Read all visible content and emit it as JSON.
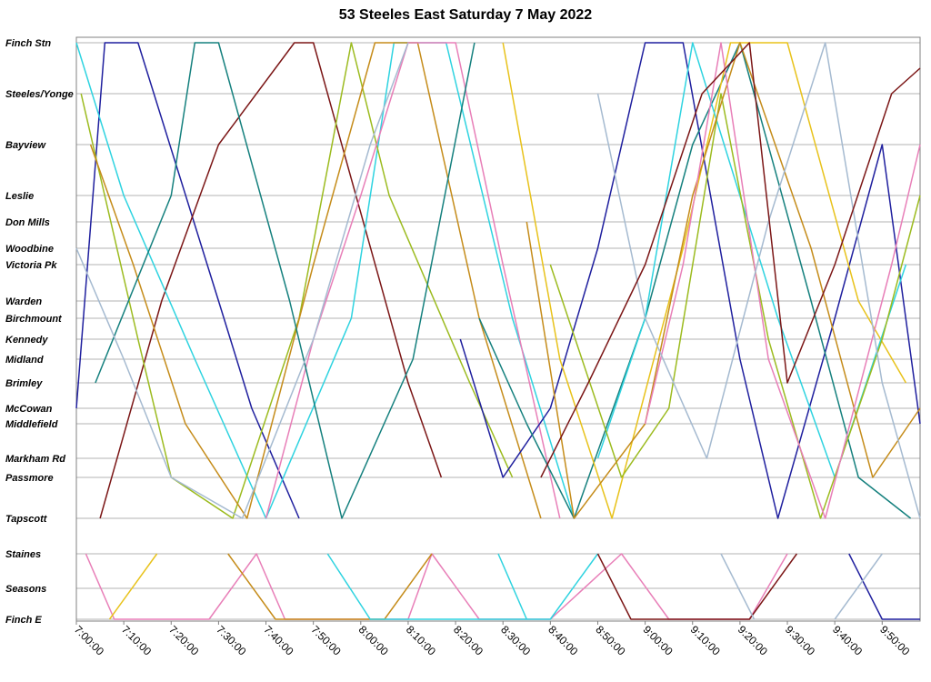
{
  "chart_data": {
    "type": "line",
    "title": "53 Steeles East Saturday 7 May 2022",
    "x_axis": {
      "kind": "time",
      "ticks": [
        "7:00:00",
        "7:10:00",
        "7:20:00",
        "7:30:00",
        "7:40:00",
        "7:50:00",
        "8:00:00",
        "8:10:00",
        "8:20:00",
        "8:30:00",
        "8:40:00",
        "8:50:00",
        "9:00:00",
        "9:10:00",
        "9:20:00",
        "9:30:00",
        "9:40:00",
        "9:50:00"
      ],
      "range_minutes": [
        420,
        598
      ]
    },
    "y_axis": {
      "kind": "stops",
      "grid": true
    },
    "main_branch_stops": [
      "Finch Stn",
      "Steeles/Yonge",
      "Bayview",
      "Leslie",
      "Don Mills",
      "Woodbine",
      "Victoria Pk",
      "Warden",
      "Birchmount",
      "Kennedy",
      "Midland",
      "Brimley",
      "McCowan",
      "Middlefield",
      "Markham Rd",
      "Passmore"
    ],
    "short_branch_stops": [
      "Tapscott",
      "Staines",
      "Seasons",
      "Finch E"
    ],
    "series": [
      {
        "color": "#1f1f9e",
        "points": [
          [
            420,
            12.0
          ],
          [
            426,
            0.0
          ],
          [
            433,
            0.0
          ],
          [
            450,
            7.0
          ],
          [
            457,
            12.0
          ],
          [
            467,
            16.0
          ]
        ]
      },
      {
        "color": "#7b1616",
        "points": [
          [
            425,
            16.0
          ],
          [
            438,
            7.0
          ],
          [
            450,
            2.0
          ],
          [
            466,
            0.0
          ],
          [
            470,
            0.0
          ],
          [
            490,
            11.0
          ],
          [
            497,
            15.0
          ]
        ]
      },
      {
        "color": "#2ed3e0",
        "points": [
          [
            420,
            0.0
          ],
          [
            430,
            3.0
          ],
          [
            445,
            10.0
          ],
          [
            460,
            16.0
          ],
          [
            478,
            8.0
          ],
          [
            487,
            0.0
          ],
          [
            498,
            0.0
          ],
          [
            512,
            8.0
          ],
          [
            525,
            16.0
          ]
        ]
      },
      {
        "color": "#9cbb1f",
        "points": [
          [
            421,
            1.0
          ],
          [
            433,
            9.0
          ],
          [
            440,
            15.0
          ],
          [
            453,
            16.0
          ],
          [
            467,
            8.0
          ],
          [
            478,
            0.0
          ],
          [
            486,
            3.0
          ],
          [
            503,
            11.0
          ],
          [
            512,
            15.0
          ]
        ]
      },
      {
        "color": "#c58c1a",
        "points": [
          [
            423,
            2.0
          ],
          [
            432,
            6.0
          ],
          [
            443,
            13.0
          ],
          [
            456,
            16.0
          ],
          [
            470,
            6.0
          ],
          [
            483,
            0.0
          ],
          [
            492,
            0.0
          ],
          [
            505,
            8.0
          ],
          [
            518,
            16.0
          ]
        ]
      },
      {
        "color": "#e87fb8",
        "points": [
          [
            460,
            16.0
          ],
          [
            470,
            9.0
          ],
          [
            480,
            3.0
          ],
          [
            490,
            0.0
          ],
          [
            500,
            0.0
          ],
          [
            510,
            6.0
          ],
          [
            522,
            16.0
          ]
        ]
      },
      {
        "color": "#15807e",
        "points": [
          [
            424,
            11.0
          ],
          [
            440,
            3.0
          ],
          [
            445,
            0.0
          ],
          [
            450,
            0.0
          ],
          [
            465,
            7.0
          ],
          [
            476,
            16.0
          ],
          [
            491,
            10.0
          ],
          [
            504,
            0.0
          ]
        ]
      },
      {
        "color": "#a5bad0",
        "points": [
          [
            420,
            5.0
          ],
          [
            430,
            10.0
          ],
          [
            440,
            15.0
          ],
          [
            455,
            16.0
          ],
          [
            470,
            9.0
          ],
          [
            482,
            2.0
          ],
          [
            490,
            0.0
          ]
        ]
      },
      {
        "color": "#1f1f9e",
        "points": [
          [
            501,
            9.0
          ],
          [
            510,
            15.0
          ],
          [
            520,
            12.0
          ],
          [
            530,
            5.0
          ],
          [
            540,
            0.0
          ],
          [
            548,
            0.0
          ],
          [
            560,
            10.0
          ],
          [
            568,
            16.0
          ],
          [
            580,
            8.0
          ],
          [
            590,
            2.0
          ],
          [
            598,
            13.0
          ]
        ]
      },
      {
        "color": "#15807e",
        "points": [
          [
            505,
            8.0
          ],
          [
            515,
            13.0
          ],
          [
            525,
            16.0
          ],
          [
            540,
            8.0
          ],
          [
            550,
            2.0
          ],
          [
            560,
            0.0
          ],
          [
            575,
            7.0
          ],
          [
            585,
            15.0
          ],
          [
            596,
            16.0
          ]
        ]
      },
      {
        "color": "#e8c21a",
        "points": [
          [
            510,
            0.0
          ],
          [
            522,
            10.0
          ],
          [
            533,
            16.0
          ],
          [
            548,
            5.0
          ],
          [
            558,
            0.0
          ],
          [
            570,
            0.0
          ],
          [
            585,
            7.0
          ],
          [
            595,
            11.0
          ]
        ]
      },
      {
        "color": "#2ed3e0",
        "points": [
          [
            530,
            14.0
          ],
          [
            540,
            8.0
          ],
          [
            550,
            0.0
          ],
          [
            568,
            8.0
          ],
          [
            580,
            15.0
          ],
          [
            595,
            6.0
          ]
        ]
      },
      {
        "color": "#9cbb1f",
        "points": [
          [
            520,
            6.0
          ],
          [
            535,
            15.0
          ],
          [
            545,
            12.0
          ],
          [
            556,
            1.0
          ],
          [
            566,
            9.0
          ],
          [
            577,
            16.0
          ],
          [
            590,
            9.0
          ],
          [
            598,
            3.0
          ]
        ]
      },
      {
        "color": "#c58c1a",
        "points": [
          [
            515,
            4.0
          ],
          [
            525,
            16.0
          ],
          [
            540,
            13.0
          ],
          [
            550,
            3.0
          ],
          [
            560,
            0.0
          ],
          [
            575,
            5.0
          ],
          [
            588,
            15.0
          ],
          [
            598,
            12.0
          ]
        ]
      },
      {
        "color": "#e87fb8",
        "points": [
          [
            540,
            13.0
          ],
          [
            548,
            6.0
          ],
          [
            556,
            0.0
          ],
          [
            566,
            10.0
          ],
          [
            578,
            16.0
          ],
          [
            592,
            6.0
          ],
          [
            598,
            2.0
          ]
        ]
      },
      {
        "color": "#a5bad0",
        "points": [
          [
            530,
            1.0
          ],
          [
            540,
            8.0
          ],
          [
            553,
            14.0
          ],
          [
            566,
            4.0
          ],
          [
            578,
            0.0
          ],
          [
            590,
            11.0
          ],
          [
            598,
            16.0
          ]
        ]
      },
      {
        "color": "#7b1616",
        "points": [
          [
            518,
            15.0
          ],
          [
            528,
            11.0
          ],
          [
            540,
            6.0
          ],
          [
            552,
            1.0
          ],
          [
            562,
            0.0
          ],
          [
            570,
            11.0
          ],
          [
            580,
            6.0
          ],
          [
            592,
            1.0
          ],
          [
            598,
            0.5
          ]
        ]
      },
      {
        "color": "#e87fb8",
        "points": [
          [
            422,
            17.0
          ],
          [
            428,
            20.0
          ],
          [
            448,
            20.0
          ],
          [
            458,
            17.0
          ],
          [
            464,
            20.0
          ],
          [
            490,
            20.0
          ],
          [
            495,
            17.0
          ],
          [
            505,
            20.0
          ],
          [
            520,
            20.0
          ],
          [
            535,
            17.0
          ],
          [
            545,
            20.0
          ],
          [
            562,
            20.0
          ],
          [
            570,
            17.0
          ]
        ]
      },
      {
        "color": "#e8c21a",
        "points": [
          [
            427,
            20.0
          ],
          [
            437,
            17.0
          ]
        ]
      },
      {
        "color": "#c58c1a",
        "points": [
          [
            452,
            17.0
          ],
          [
            462,
            20.0
          ],
          [
            485,
            20.0
          ],
          [
            495,
            17.0
          ]
        ]
      },
      {
        "color": "#2ed3e0",
        "points": [
          [
            473,
            17.0
          ],
          [
            482,
            20.0
          ],
          [
            520,
            20.0
          ],
          [
            530,
            17.0
          ]
        ]
      },
      {
        "color": "#2ed3e0",
        "points": [
          [
            509,
            17.0
          ],
          [
            515,
            20.0
          ]
        ]
      },
      {
        "color": "#7b1616",
        "points": [
          [
            530,
            17.0
          ],
          [
            537,
            20.0
          ],
          [
            562,
            20.0
          ],
          [
            572,
            17.0
          ]
        ]
      },
      {
        "color": "#a5bad0",
        "points": [
          [
            556,
            17.0
          ],
          [
            563,
            20.0
          ]
        ]
      },
      {
        "color": "#1f1f9e",
        "points": [
          [
            583,
            17.0
          ],
          [
            590,
            20.0
          ],
          [
            598,
            20.0
          ]
        ]
      },
      {
        "color": "#a5bad0",
        "points": [
          [
            580,
            20.0
          ],
          [
            590,
            17.0
          ]
        ]
      }
    ]
  }
}
